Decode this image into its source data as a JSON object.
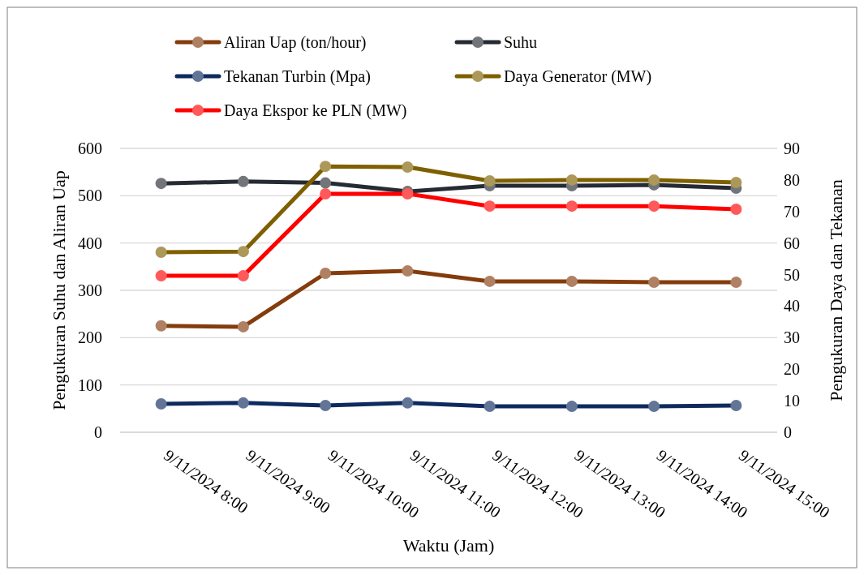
{
  "chart_data": {
    "type": "line",
    "xlabel": "Waktu (Jam)",
    "ylabel": "Pengukuran Suhu dan Aliran Uap",
    "y2label": "Pengukuran Daya dan Tekanan",
    "categories": [
      "9/11/2024 8:00",
      "9/11/2024 9:00",
      "9/11/2024 10:00",
      "9/11/2024 11:00",
      "9/11/2024 12:00",
      "9/11/2024 13:00",
      "9/11/2024 14:00",
      "9/11/2024 15:00"
    ],
    "ylim": [
      0,
      600
    ],
    "yticks": [
      0,
      100,
      200,
      300,
      400,
      500,
      600
    ],
    "y2lim": [
      0,
      90
    ],
    "y2ticks": [
      0,
      10,
      20,
      30,
      40,
      50,
      60,
      70,
      80,
      90
    ],
    "grid": "y",
    "legend": "top",
    "marker": "circle",
    "line_style": "solid",
    "series": [
      {
        "name": "Aliran Uap (ton/hour)",
        "color": "#843c0c",
        "values": [
          225,
          223,
          336,
          341,
          319,
          319,
          317,
          317
        ]
      },
      {
        "name": "Suhu",
        "color": "#262a33",
        "values": [
          526,
          530,
          527,
          509,
          521,
          521,
          523,
          516
        ]
      },
      {
        "name": "Tekanan Turbin (Mpa)",
        "color": "#0e2a5e",
        "axis": "y2",
        "values": [
          9.0,
          9.3,
          8.5,
          9.3,
          8.2,
          8.2,
          8.2,
          8.5
        ]
      },
      {
        "name": "Daya Generator (MW)",
        "color": "#7f6000",
        "axis": "y2",
        "values": [
          57.1,
          57.3,
          84.3,
          84.1,
          79.7,
          80,
          80,
          79.2
        ]
      },
      {
        "name": "Daya Ekspor ke PLN (MW)",
        "color": "#ff0000",
        "axis": "y2",
        "values": [
          49.6,
          49.6,
          75.6,
          75.6,
          71.7,
          71.7,
          71.7,
          70.7
        ]
      }
    ]
  }
}
